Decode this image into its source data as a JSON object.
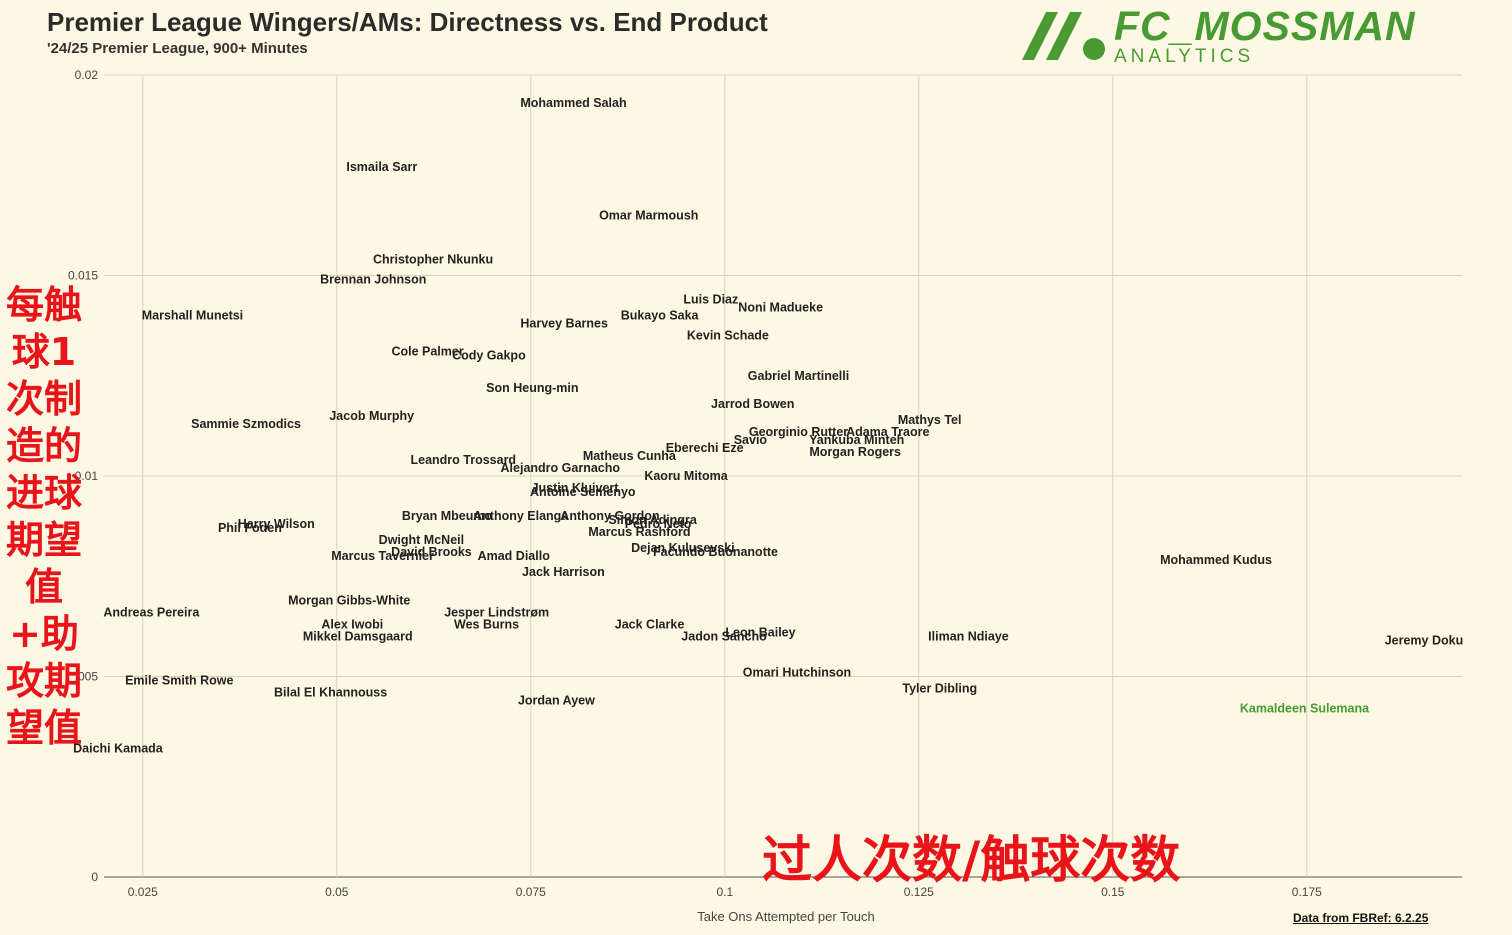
{
  "header": {
    "title": "Premier League Wingers/AMs: Directness vs. End Product",
    "subtitle": "'24/25 Premier League, 900+ Minutes"
  },
  "logo": {
    "name": "FC_MOSSMAN",
    "sub": "ANALYTICS",
    "color": "#4a9a34"
  },
  "annotations": {
    "y_axis_zh": "每触球1次制造的进球期望值+助攻期望值",
    "x_axis_zh": "过人次数/触球次数",
    "source": "Data from FBRef: 6.2.25",
    "annotation_color": "#e8141a"
  },
  "chart_data": {
    "type": "scatter",
    "title": "Premier League Wingers/AMs: Directness vs. End Product",
    "subtitle": "'24/25 Premier League, 900+ Minutes",
    "xlabel": "Take Ons Attempted per Touch",
    "ylabel": "",
    "xlim": [
      0.02,
      0.195
    ],
    "ylim": [
      0,
      0.02
    ],
    "x_ticks": [
      0.025,
      0.05,
      0.075,
      0.1,
      0.125,
      0.15,
      0.175
    ],
    "x_tick_labels": [
      "0.025",
      "0.05",
      "0.075",
      "0.1",
      "0.125",
      "0.15",
      "0.175"
    ],
    "y_ticks": [
      0,
      0.005,
      0.01,
      0.015,
      0.02
    ],
    "y_tick_labels": [
      "0",
      ".005",
      "0.01",
      "0.015",
      "0.02"
    ],
    "grid": true,
    "highlight_color": "#4a9a34",
    "points": [
      {
        "name": "Mohammed Salah",
        "x": 0.0805,
        "y": 0.0193
      },
      {
        "name": "Ismaila Sarr",
        "x": 0.0558,
        "y": 0.0177
      },
      {
        "name": "Omar Marmoush",
        "x": 0.0902,
        "y": 0.0165
      },
      {
        "name": "Christopher Nkunku",
        "x": 0.0624,
        "y": 0.0154
      },
      {
        "name": "Brennan Johnson",
        "x": 0.0547,
        "y": 0.0149
      },
      {
        "name": "Luis Diaz",
        "x": 0.0982,
        "y": 0.0144
      },
      {
        "name": "Noni Madueke",
        "x": 0.1072,
        "y": 0.0142
      },
      {
        "name": "Marshall Munetsi",
        "x": 0.0314,
        "y": 0.014
      },
      {
        "name": "Bukayo Saka",
        "x": 0.0916,
        "y": 0.014
      },
      {
        "name": "Harvey Barnes",
        "x": 0.0793,
        "y": 0.0138
      },
      {
        "name": "Kevin Schade",
        "x": 0.1004,
        "y": 0.0135
      },
      {
        "name": "Cole Palmer",
        "x": 0.0617,
        "y": 0.0131
      },
      {
        "name": "Cody Gakpo",
        "x": 0.0696,
        "y": 0.013
      },
      {
        "name": "Son Heung-min",
        "x": 0.0752,
        "y": 0.0122
      },
      {
        "name": "Gabriel Martinelli",
        "x": 0.1095,
        "y": 0.0125
      },
      {
        "name": "Jarrod Bowen",
        "x": 0.1036,
        "y": 0.0118
      },
      {
        "name": "Mathys Tel",
        "x": 0.1264,
        "y": 0.0114
      },
      {
        "name": "Sammie Szmodics",
        "x": 0.0383,
        "y": 0.0113
      },
      {
        "name": "Jacob Murphy",
        "x": 0.0545,
        "y": 0.0115
      },
      {
        "name": "Georginio Rutter",
        "x": 0.1095,
        "y": 0.0111
      },
      {
        "name": "Yankuba Minteh",
        "x": 0.117,
        "y": 0.0109
      },
      {
        "name": "Adama Traore",
        "x": 0.121,
        "y": 0.0111
      },
      {
        "name": "Savio",
        "x": 0.1033,
        "y": 0.0109
      },
      {
        "name": "Eberechi Eze",
        "x": 0.0974,
        "y": 0.0107
      },
      {
        "name": "Morgan Rogers",
        "x": 0.1168,
        "y": 0.0106
      },
      {
        "name": "Matheus Cunha",
        "x": 0.0877,
        "y": 0.0105
      },
      {
        "name": "Leandro Trossard",
        "x": 0.0663,
        "y": 0.0104
      },
      {
        "name": "Alejandro Garnacho",
        "x": 0.0788,
        "y": 0.0102
      },
      {
        "name": "Kaoru Mitoma",
        "x": 0.095,
        "y": 0.01
      },
      {
        "name": "Justin Kluivert",
        "x": 0.0807,
        "y": 0.0097
      },
      {
        "name": "Antoine Semenyo",
        "x": 0.0817,
        "y": 0.0096
      },
      {
        "name": "Harry Wilson",
        "x": 0.0422,
        "y": 0.0088
      },
      {
        "name": "Phil Foden",
        "x": 0.0388,
        "y": 0.0087
      },
      {
        "name": "Bryan Mbeumo",
        "x": 0.0642,
        "y": 0.009
      },
      {
        "name": "Anthony Elanga",
        "x": 0.0737,
        "y": 0.009
      },
      {
        "name": "Anthony Gordon",
        "x": 0.0852,
        "y": 0.009
      },
      {
        "name": "Simon Adingra",
        "x": 0.0907,
        "y": 0.0089
      },
      {
        "name": "Pedro Neto",
        "x": 0.0914,
        "y": 0.0088
      },
      {
        "name": "Marcus Rashford",
        "x": 0.089,
        "y": 0.0086
      },
      {
        "name": "Dwight McNeil",
        "x": 0.0609,
        "y": 0.0084
      },
      {
        "name": "David Brooks",
        "x": 0.0622,
        "y": 0.0081
      },
      {
        "name": "Marcus Tavernier",
        "x": 0.0559,
        "y": 0.008
      },
      {
        "name": "Amad Diallo",
        "x": 0.0728,
        "y": 0.008
      },
      {
        "name": "Dejan Kulusevski",
        "x": 0.0946,
        "y": 0.0082
      },
      {
        "name": "Facundo Buonanotte",
        "x": 0.0988,
        "y": 0.0081
      },
      {
        "name": "Jack Harrison",
        "x": 0.0792,
        "y": 0.0076
      },
      {
        "name": "Mohammed Kudus",
        "x": 0.1633,
        "y": 0.0079
      },
      {
        "name": "Andreas Pereira",
        "x": 0.0261,
        "y": 0.0066
      },
      {
        "name": "Morgan Gibbs-White",
        "x": 0.0516,
        "y": 0.0069
      },
      {
        "name": "Jesper Lindstrøm",
        "x": 0.0706,
        "y": 0.0066
      },
      {
        "name": "Alex Iwobi",
        "x": 0.052,
        "y": 0.0063
      },
      {
        "name": "Wes Burns",
        "x": 0.0693,
        "y": 0.0063
      },
      {
        "name": "Jack Clarke",
        "x": 0.0903,
        "y": 0.0063
      },
      {
        "name": "Mikkel Damsgaard",
        "x": 0.0527,
        "y": 0.006
      },
      {
        "name": "Jadon Sancho",
        "x": 0.0999,
        "y": 0.006
      },
      {
        "name": "Leon Bailey",
        "x": 0.1046,
        "y": 0.0061
      },
      {
        "name": "Iliman Ndiaye",
        "x": 0.1314,
        "y": 0.006
      },
      {
        "name": "Jeremy Doku",
        "x": 0.1901,
        "y": 0.0059
      },
      {
        "name": "Omari Hutchinson",
        "x": 0.1093,
        "y": 0.0051
      },
      {
        "name": "Emile Smith Rowe",
        "x": 0.0297,
        "y": 0.0049
      },
      {
        "name": "Bilal El Khannouss",
        "x": 0.0492,
        "y": 0.0046
      },
      {
        "name": "Tyler Dibling",
        "x": 0.1277,
        "y": 0.0047
      },
      {
        "name": "Jordan Ayew",
        "x": 0.0783,
        "y": 0.0044
      },
      {
        "name": "Kamaldeen Sulemana",
        "x": 0.1747,
        "y": 0.0042,
        "highlight": true
      },
      {
        "name": "Daichi Kamada",
        "x": 0.0218,
        "y": 0.0032
      }
    ]
  }
}
